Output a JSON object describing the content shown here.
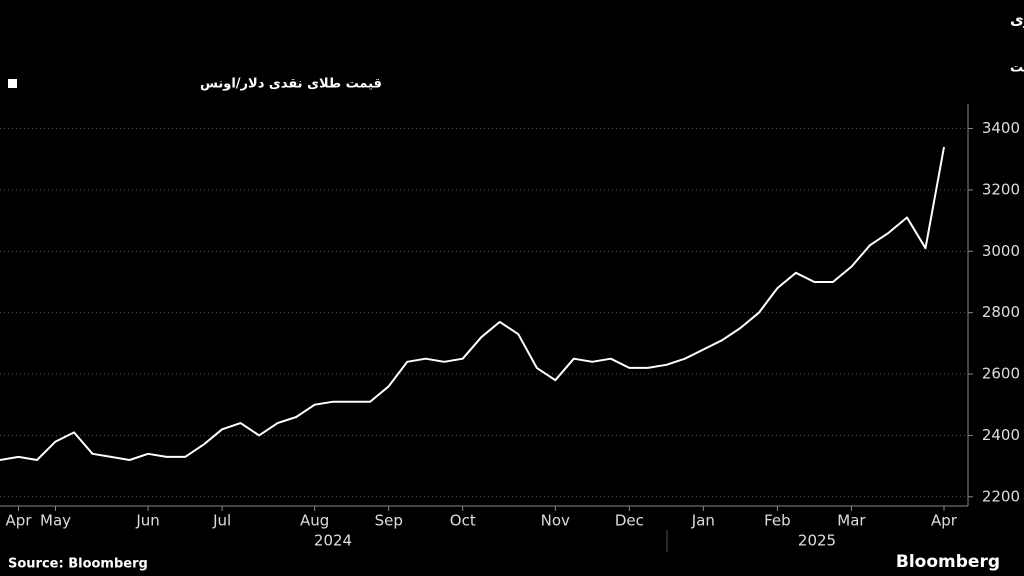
{
  "chart_data": {
    "type": "line",
    "title": "رکوردشکنی طلا در پی کاهش ارزش دلار و نوسانات ناشی از تنش‌های تجاری",
    "subtitle": "فلز زرد از قله قیمتی هفته قبل پیشی گرفت",
    "source": "Source: Bloomberg",
    "brand": "Bloomberg",
    "categories": [
      null,
      "Apr",
      null,
      "May",
      null,
      null,
      null,
      null,
      "Jun",
      null,
      null,
      null,
      "Jul",
      null,
      null,
      null,
      null,
      "Aug",
      null,
      null,
      null,
      "Sep",
      null,
      null,
      null,
      "Oct",
      null,
      null,
      null,
      null,
      "Nov",
      null,
      null,
      null,
      "Dec",
      null,
      null,
      null,
      "Jan",
      null,
      null,
      null,
      "Feb",
      null,
      null,
      null,
      "Mar",
      null,
      null,
      null,
      null,
      "Apr"
    ],
    "years": [
      "2024",
      "2025"
    ],
    "series": [
      {
        "name": "قیمت طلای نقدی دلار/اونس",
        "color": "#ffffff",
        "values": [
          2320,
          2330,
          2320,
          2380,
          2410,
          2340,
          2330,
          2320,
          2340,
          2330,
          2330,
          2370,
          2420,
          2440,
          2400,
          2440,
          2460,
          2500,
          2510,
          2510,
          2510,
          2560,
          2640,
          2650,
          2640,
          2650,
          2720,
          2770,
          2730,
          2620,
          2580,
          2650,
          2640,
          2650,
          2620,
          2620,
          2630,
          2650,
          2680,
          2710,
          2750,
          2800,
          2880,
          2930,
          2900,
          2900,
          2950,
          3020,
          3060,
          3110,
          3010,
          3340
        ]
      }
    ],
    "ylim": [
      2170,
      3480
    ],
    "yticks": [
      2200,
      2400,
      2600,
      2800,
      3000,
      3200,
      3400
    ],
    "grid": true
  }
}
